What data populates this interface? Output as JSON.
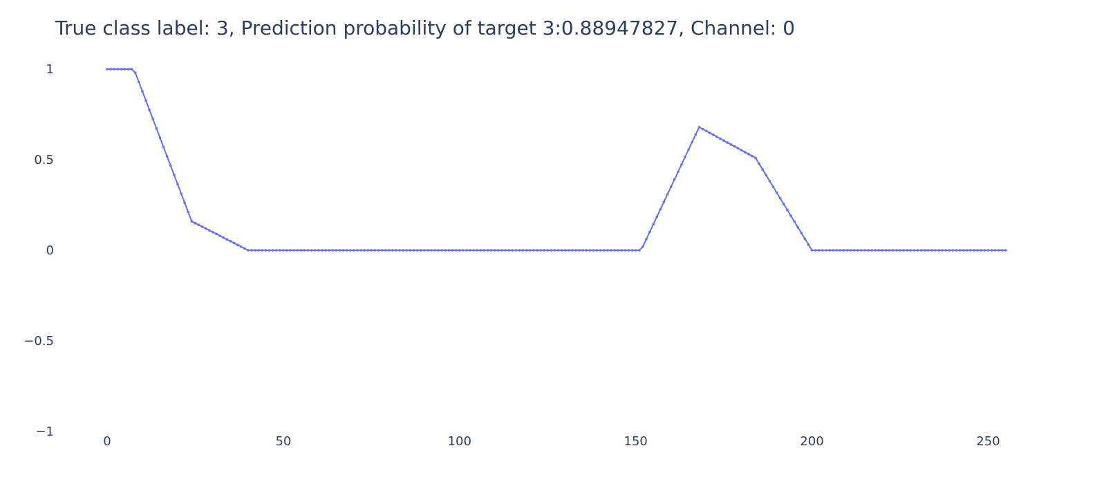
{
  "chart_data": {
    "type": "line",
    "title": "True class label: 3, Prediction probability of target 3:0.88947827, Channel: 0",
    "xlabel": "",
    "ylabel": "",
    "xlim": [
      0,
      255
    ],
    "ylim": [
      -1,
      1
    ],
    "x_ticks": [
      0,
      50,
      100,
      150,
      200,
      250
    ],
    "x_tick_labels": [
      "0",
      "50",
      "100",
      "150",
      "200",
      "250"
    ],
    "y_ticks": [
      -1,
      -0.5,
      0,
      0.5,
      1
    ],
    "y_tick_labels": [
      "−1",
      "−0.5",
      "0",
      "0.5",
      "1"
    ],
    "grid": false,
    "legend": "none",
    "markers": true,
    "series": [
      {
        "color": "#636efa",
        "points": [
          [
            0,
            1.0
          ],
          [
            7,
            1.0
          ],
          [
            8,
            0.98
          ],
          [
            24,
            0.16
          ],
          [
            40,
            0.0
          ],
          [
            151,
            0.0
          ],
          [
            152,
            0.02
          ],
          [
            168,
            0.68
          ],
          [
            184,
            0.51
          ],
          [
            200,
            0.0
          ],
          [
            255,
            0.0
          ]
        ]
      }
    ]
  }
}
